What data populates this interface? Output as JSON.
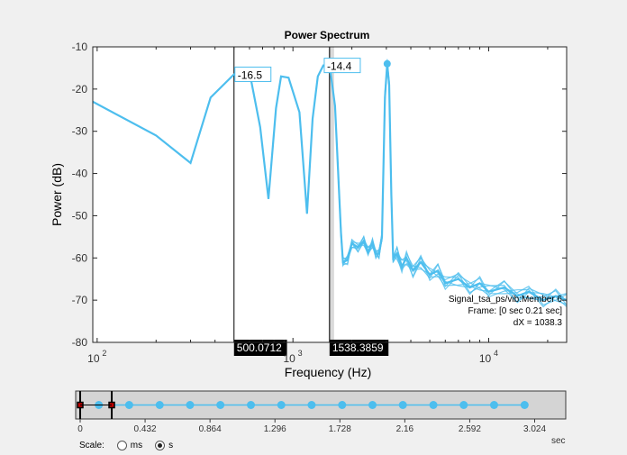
{
  "chart_data": {
    "type": "line",
    "title": "Power Spectrum",
    "xlabel": "Frequency  (Hz)",
    "ylabel": "Power (dB)",
    "xscale": "log",
    "xlim": [
      95,
      25000
    ],
    "ylim": [
      -80,
      -10
    ],
    "xticks": [
      {
        "value": 100,
        "base": "10",
        "exp": "2"
      },
      {
        "value": 1000,
        "base": "10",
        "exp": "3"
      },
      {
        "value": 10000,
        "base": "10",
        "exp": "4"
      }
    ],
    "yticks": [
      -10,
      -20,
      -30,
      -40,
      -50,
      -60,
      -70,
      -80
    ],
    "grid": false,
    "color": "#4DBEEE",
    "series_main": [
      [
        95,
        -23
      ],
      [
        200,
        -31
      ],
      [
        300,
        -37.5
      ],
      [
        380,
        -22
      ],
      [
        500,
        -16.5
      ],
      [
        600,
        -16
      ],
      [
        680,
        -29
      ],
      [
        750,
        -46
      ],
      [
        820,
        -24.5
      ],
      [
        870,
        -17
      ],
      [
        950,
        -17.3
      ],
      [
        1080,
        -25.5
      ],
      [
        1180,
        -49.5
      ],
      [
        1260,
        -27
      ],
      [
        1340,
        -17
      ],
      [
        1430,
        -14.4
      ],
      [
        1540,
        -14.4
      ],
      [
        1640,
        -24
      ],
      [
        1760,
        -54
      ],
      [
        1800,
        -61
      ],
      [
        1900,
        -60.5
      ],
      [
        2000,
        -56.5
      ],
      [
        2150,
        -57.5
      ],
      [
        2300,
        -56
      ],
      [
        2420,
        -58.5
      ],
      [
        2550,
        -56.5
      ],
      [
        2650,
        -59
      ],
      [
        2750,
        -59
      ],
      [
        2850,
        -55
      ],
      [
        2950,
        -22
      ],
      [
        3030,
        -14
      ],
      [
        3100,
        -19
      ],
      [
        3180,
        -45
      ],
      [
        3250,
        -60
      ],
      [
        3400,
        -59
      ],
      [
        3600,
        -62
      ],
      [
        3800,
        -60
      ],
      [
        4100,
        -63
      ],
      [
        4500,
        -61
      ],
      [
        5000,
        -64
      ],
      [
        5500,
        -63
      ],
      [
        6000,
        -66
      ],
      [
        7000,
        -65
      ],
      [
        8000,
        -67
      ],
      [
        9000,
        -66
      ],
      [
        10000,
        -68
      ],
      [
        12000,
        -67
      ],
      [
        14000,
        -69
      ],
      [
        16000,
        -68
      ],
      [
        19000,
        -70
      ],
      [
        22000,
        -69
      ],
      [
        25000,
        -70
      ]
    ],
    "peak_marker": [
      3030,
      -14
    ],
    "annotations": [
      {
        "x": 500,
        "y": -16.5,
        "label": "-16.5"
      },
      {
        "x": 1430,
        "y": -14.4,
        "label": "-14.4"
      }
    ],
    "cursors": [
      {
        "x": 500.0712,
        "label": "500.0712"
      },
      {
        "x": 1538.3859,
        "label": "1538.3859"
      }
    ],
    "info_lines": [
      "Signal_tsa_ps/vib:Member 6",
      "Frame: [0 sec 0.21 sec]",
      "dX = 1038.3"
    ]
  },
  "time_slider": {
    "ticks": [
      "0",
      "0.432",
      "0.864",
      "1.296",
      "1.728",
      "2.16",
      "2.592",
      "3.024"
    ],
    "unit": "sec",
    "tmin": 0,
    "tmax": 3.024,
    "points": [
      0.124,
      0.326,
      0.529,
      0.731,
      0.933,
      1.136,
      1.338,
      1.54,
      1.743,
      1.945,
      2.147,
      2.35,
      2.552,
      2.754,
      2.957
    ],
    "frame_start": 0,
    "frame_end": 0.21
  },
  "scale": {
    "label": "Scale:",
    "options": [
      "ms",
      "s"
    ],
    "selected": "s"
  }
}
